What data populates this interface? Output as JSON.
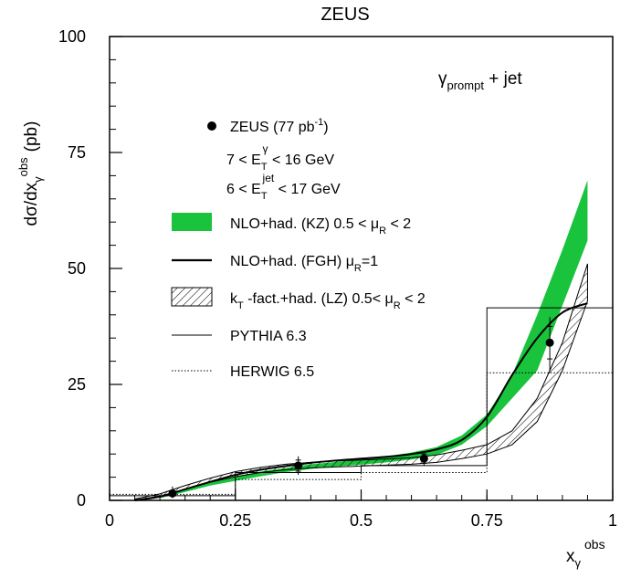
{
  "chart_data": {
    "type": "line",
    "title": "ZEUS",
    "ylabel": {
      "main": "dσ/dx",
      "sub": "γ",
      "sup": "obs",
      "unit": "(pb)"
    },
    "xlabel": {
      "main": "x",
      "sub": "γ",
      "sup": "obs"
    },
    "xlim": [
      0,
      1
    ],
    "ylim": [
      0,
      100
    ],
    "x_ticks": [
      {
        "v": 0,
        "label": "0"
      },
      {
        "v": 0.25,
        "label": "0.25"
      },
      {
        "v": 0.5,
        "label": "0.5"
      },
      {
        "v": 0.75,
        "label": "0.75"
      },
      {
        "v": 1,
        "label": "1"
      }
    ],
    "y_ticks": [
      {
        "v": 0,
        "label": "0"
      },
      {
        "v": 25,
        "label": "25"
      },
      {
        "v": 50,
        "label": "50"
      },
      {
        "v": 75,
        "label": "75"
      },
      {
        "v": 100,
        "label": "100"
      }
    ],
    "annotations": {
      "process": {
        "main": "γ",
        "sub": "prompt",
        "rest": " + jet"
      },
      "cut1": {
        "pre": "7 < E",
        "sub": "T",
        "sup": "γ",
        "post": " < 16 GeV"
      },
      "cut2": {
        "pre": "6 < E",
        "sub": "T",
        "sup": "jet",
        "post": " < 17 GeV"
      }
    },
    "legend": {
      "data": {
        "pre": "ZEUS (77 pb",
        "sup": "-1",
        "post": ")"
      },
      "kz": {
        "pre": "NLO+had. (KZ) 0.5 < μ",
        "sub": "R",
        "post": " < 2"
      },
      "fgh": {
        "pre": "NLO+had. (FGH)  μ",
        "sub": "R",
        "post": "=1"
      },
      "lz": {
        "pre": "k",
        "sub": "T",
        "mid": " -fact.+had. (LZ)  0.5< μ",
        "sub2": "R",
        "post": " < 2"
      },
      "pythia": "PYTHIA 6.3",
      "herwig": "HERWIG 6.5"
    },
    "colors": {
      "kz_band": "#19c33c",
      "axis": "#000000"
    },
    "series": [
      {
        "kind": "points",
        "x": [
          0.125,
          0.375,
          0.625,
          0.875
        ],
        "y": [
          1.5,
          7.5,
          9.0,
          34.0
        ],
        "yerr_low": [
          1.0,
          2.0,
          1.5,
          6.0
        ],
        "yerr_high": [
          1.5,
          2.0,
          1.5,
          5.5
        ],
        "stat_low": [
          0.6,
          1.2,
          1.0,
          3.5
        ],
        "stat_high": [
          0.6,
          1.2,
          1.0,
          3.5
        ]
      },
      {
        "kind": "band",
        "x": [
          0.1,
          0.15,
          0.2,
          0.25,
          0.3,
          0.35,
          0.4,
          0.45,
          0.5,
          0.55,
          0.6,
          0.65,
          0.7,
          0.75,
          0.8,
          0.85,
          0.9,
          0.95
        ],
        "low": [
          0.5,
          1.8,
          3.2,
          4.2,
          5.2,
          6.1,
          6.8,
          7.3,
          7.7,
          8.2,
          8.8,
          9.8,
          12.0,
          16.0,
          22.0,
          28.0,
          42.0,
          56.0
        ],
        "high": [
          1.0,
          2.5,
          4.0,
          5.2,
          6.2,
          7.0,
          7.8,
          8.3,
          8.8,
          9.5,
          10.3,
          11.5,
          14.0,
          18.5,
          27.0,
          40.0,
          54.0,
          69.0
        ]
      },
      {
        "kind": "curve",
        "x": [
          0.05,
          0.1,
          0.15,
          0.2,
          0.25,
          0.3,
          0.35,
          0.4,
          0.45,
          0.5,
          0.55,
          0.6,
          0.65,
          0.7,
          0.75,
          0.8,
          0.85,
          0.9,
          0.95
        ],
        "y": [
          0.0,
          0.8,
          2.4,
          4.0,
          5.5,
          6.6,
          7.4,
          8.1,
          8.6,
          9.0,
          9.4,
          10.0,
          11.0,
          13.0,
          18.0,
          27.0,
          35.0,
          40.5,
          42.5
        ]
      },
      {
        "kind": "hatched",
        "x": [
          0.05,
          0.1,
          0.15,
          0.2,
          0.25,
          0.3,
          0.35,
          0.4,
          0.45,
          0.5,
          0.55,
          0.6,
          0.65,
          0.7,
          0.75,
          0.8,
          0.85,
          0.9,
          0.95
        ],
        "low": [
          0.1,
          0.9,
          2.4,
          3.9,
          5.1,
          6.0,
          6.6,
          7.0,
          7.2,
          7.4,
          7.6,
          7.8,
          8.2,
          9.0,
          10.0,
          12.0,
          17.0,
          28.0,
          43.0
        ],
        "high": [
          0.3,
          1.4,
          3.2,
          4.8,
          6.2,
          7.1,
          7.8,
          8.2,
          8.5,
          8.7,
          8.9,
          9.2,
          9.8,
          10.8,
          12.0,
          15.0,
          22.0,
          34.0,
          51.0
        ]
      },
      {
        "kind": "histogram",
        "edges": [
          0,
          0.25,
          0.5,
          0.75,
          1.0
        ],
        "y": [
          1.0,
          6.0,
          7.5,
          41.5
        ]
      },
      {
        "kind": "histogram-dotted",
        "edges": [
          0,
          0.25,
          0.5,
          0.75,
          1.0
        ],
        "y": [
          1.3,
          4.5,
          6.0,
          27.5
        ]
      }
    ]
  }
}
